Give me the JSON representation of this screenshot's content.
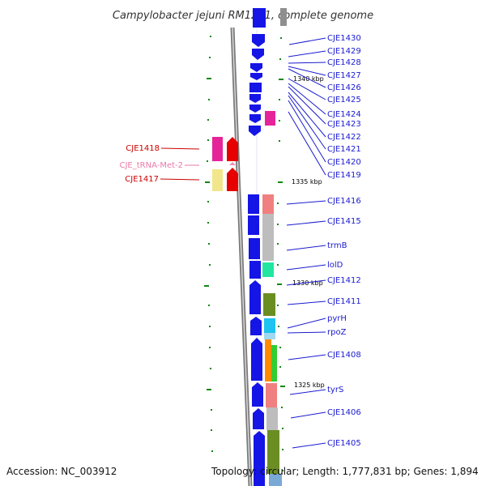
{
  "title": "Campylobacter jejuni RM1221, complete genome",
  "footer": {
    "accession": "Accession: NC_003912",
    "topology": "Topology: circular; Length: 1,777,831 bp; Genes: 1,894"
  },
  "colors": {
    "strand_gene": "#1515e6",
    "label_blue": "#1a1ad0",
    "label_red": "#cc0000",
    "label_pink": "#e87aa8",
    "tick_green": "#118811",
    "backbone": "#777777"
  },
  "scale_labels": [
    "1340 kbp",
    "1335 kbp",
    "1330 kbp",
    "1325 kbp"
  ],
  "right_genes": [
    "CJE1430",
    "CJE1429",
    "CJE1428",
    "CJE1427",
    "CJE1426",
    "CJE1425",
    "CJE1424",
    "CJE1423",
    "CJE1422",
    "CJE1421",
    "CJE1420",
    "CJE1419",
    "CJE1416",
    "CJE1415",
    "trmB",
    "lolD",
    "CJE1412",
    "CJE1411",
    "pyrH",
    "rpoZ",
    "CJE1408",
    "tyrS",
    "CJE1406",
    "CJE1405"
  ],
  "left_genes": [
    "CJE1418",
    "CJE_tRNA-Met-2",
    "CJE1417"
  ]
}
